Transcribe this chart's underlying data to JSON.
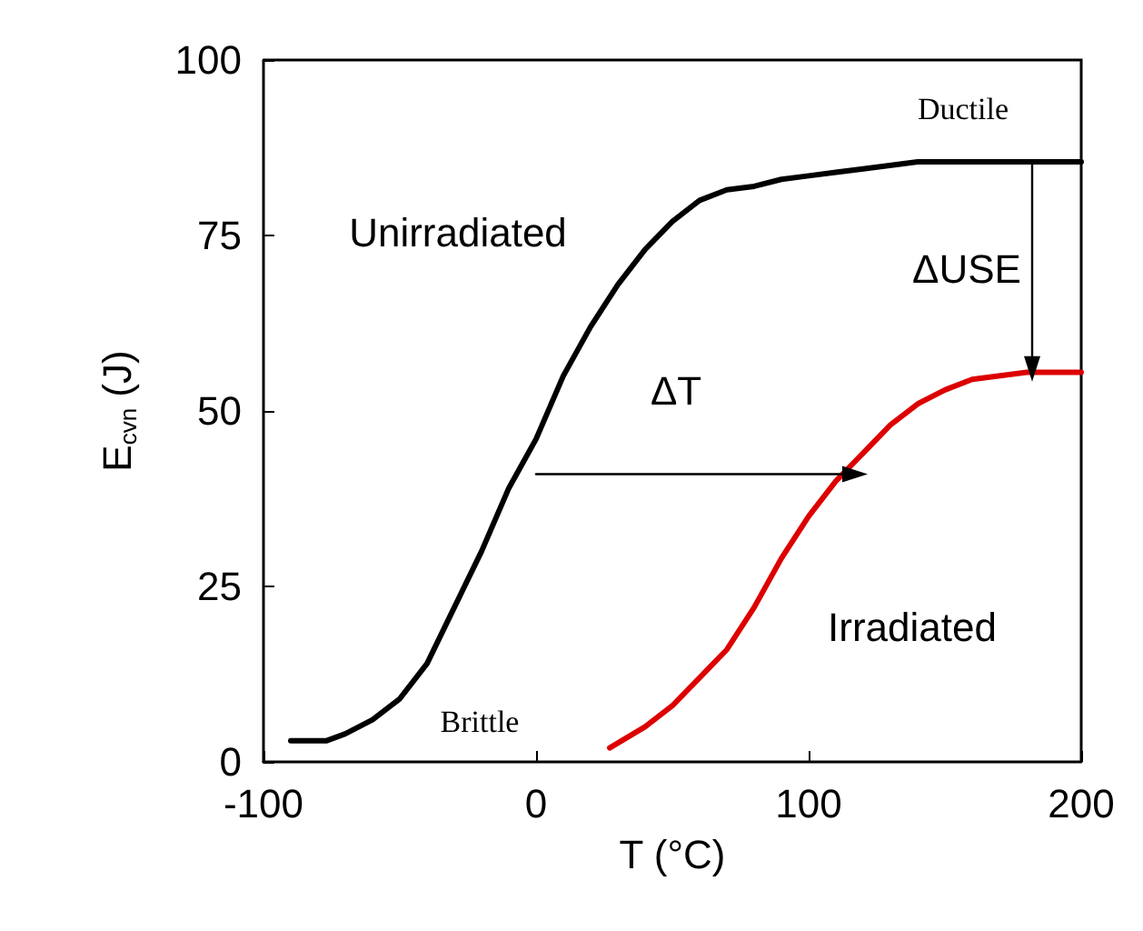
{
  "chart_data": {
    "type": "line",
    "xlabel": "T (°C)",
    "ylabel": "E$_{cvn}$ (J)",
    "xlim": [
      -100,
      200
    ],
    "xticks": [
      -100,
      0,
      100,
      200
    ],
    "ylim": [
      0,
      100
    ],
    "yticks": [
      0,
      25,
      50,
      75,
      100
    ],
    "grid": false,
    "marker": "none",
    "line_style": "solid",
    "series": [
      {
        "color": "#000000",
        "x": [
          -90,
          -77,
          -70,
          -60,
          -50,
          -40,
          -30,
          -20,
          -10,
          0,
          10,
          20,
          30,
          40,
          50,
          60,
          70,
          80,
          90,
          100,
          110,
          120,
          140,
          200
        ],
        "values": [
          3,
          3,
          4,
          6,
          9,
          14,
          22,
          30,
          39,
          46,
          55,
          62,
          68,
          73,
          77,
          80,
          81.5,
          82,
          83,
          83.5,
          84,
          84.5,
          85.5,
          85.5
        ]
      },
      {
        "color": "#dd0000",
        "x": [
          27,
          40,
          50,
          60,
          70,
          80,
          90,
          100,
          110,
          120,
          130,
          140,
          150,
          160,
          180,
          200
        ],
        "values": [
          2,
          5,
          8,
          12,
          16,
          22,
          29,
          35,
          40,
          44,
          48,
          51,
          53,
          54.5,
          55.5,
          55.5
        ]
      },
      {
        "color": "#000000",
        "x": [
          0,
          117
        ],
        "values": [
          41,
          41
        ],
        "marker": "triangle"
      },
      {
        "color": "#000000",
        "x": [
          182,
          182
        ],
        "values": [
          85.5,
          56
        ],
        "marker": "triangle"
      }
    ],
    "annotations": [
      "Ductile",
      "Unirradiated",
      "ΔUSE",
      "ΔT",
      "Irradiated",
      "Brittle"
    ]
  }
}
